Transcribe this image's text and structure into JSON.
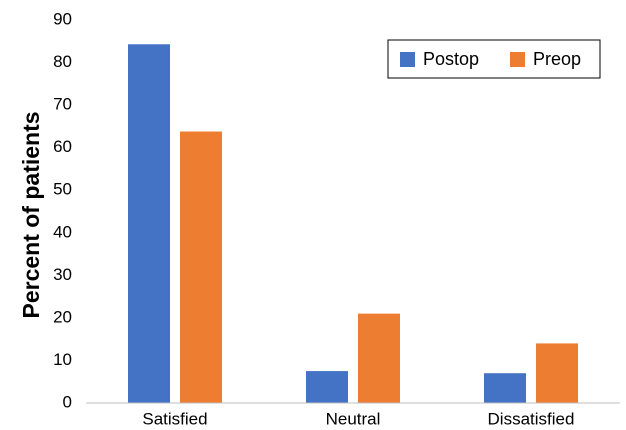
{
  "chart_data": {
    "type": "bar",
    "title": "",
    "xlabel": "",
    "ylabel": "Percent of patients",
    "ylim": [
      0,
      90
    ],
    "yticks": [
      0,
      10,
      20,
      30,
      40,
      50,
      60,
      70,
      80,
      90
    ],
    "categories": [
      "Satisfied",
      "Neutral",
      "Dissatisfied"
    ],
    "series": [
      {
        "name": "Postop",
        "color": "#4472C4",
        "values": [
          84.3,
          7.5,
          7.0
        ]
      },
      {
        "name": "Preop",
        "color": "#ED7D31",
        "values": [
          63.8,
          21.0,
          14.0
        ]
      }
    ],
    "legend": "top-right",
    "grid": false
  }
}
